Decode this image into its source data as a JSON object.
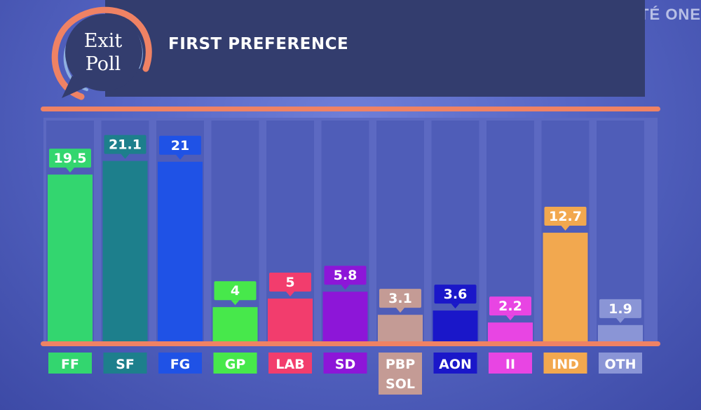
{
  "brand": "RTÉ ONE",
  "header": {
    "logo_line1": "Exit",
    "logo_line2": "Poll",
    "title": "FIRST PREFERENCE"
  },
  "colors": {
    "accent": "#ef8264",
    "header": "#333d6e"
  },
  "chart_data": {
    "type": "bar",
    "title": "FIRST PREFERENCE",
    "ylim": [
      0,
      25
    ],
    "categories": [
      {
        "code": "FF",
        "label": [
          "FF"
        ],
        "value": 19.5,
        "display": "19.5",
        "color": "#33d66f"
      },
      {
        "code": "SF",
        "label": [
          "SF"
        ],
        "value": 21.1,
        "display": "21.1",
        "color": "#1d7f8c"
      },
      {
        "code": "FG",
        "label": [
          "FG"
        ],
        "value": 21,
        "display": "21",
        "color": "#1f52e6"
      },
      {
        "code": "GP",
        "label": [
          "GP"
        ],
        "value": 4,
        "display": "4",
        "color": "#47e84b"
      },
      {
        "code": "LAB",
        "label": [
          "LAB"
        ],
        "value": 5,
        "display": "5",
        "color": "#f23d6d"
      },
      {
        "code": "SD",
        "label": [
          "SD"
        ],
        "value": 5.8,
        "display": "5.8",
        "color": "#8d16d8"
      },
      {
        "code": "PBP",
        "label": [
          "PBP",
          "SOL"
        ],
        "value": 3.1,
        "display": "3.1",
        "color": "#c49b95"
      },
      {
        "code": "AON",
        "label": [
          "AON"
        ],
        "value": 3.6,
        "display": "3.6",
        "color": "#1a17c9"
      },
      {
        "code": "II",
        "label": [
          "II"
        ],
        "value": 2.2,
        "display": "2.2",
        "color": "#e845e3"
      },
      {
        "code": "IND",
        "label": [
          "IND"
        ],
        "value": 12.7,
        "display": "12.7",
        "color": "#f2a84f"
      },
      {
        "code": "OTH",
        "label": [
          "OTH"
        ],
        "value": 1.9,
        "display": "1.9",
        "color": "#8a95d6"
      }
    ]
  }
}
